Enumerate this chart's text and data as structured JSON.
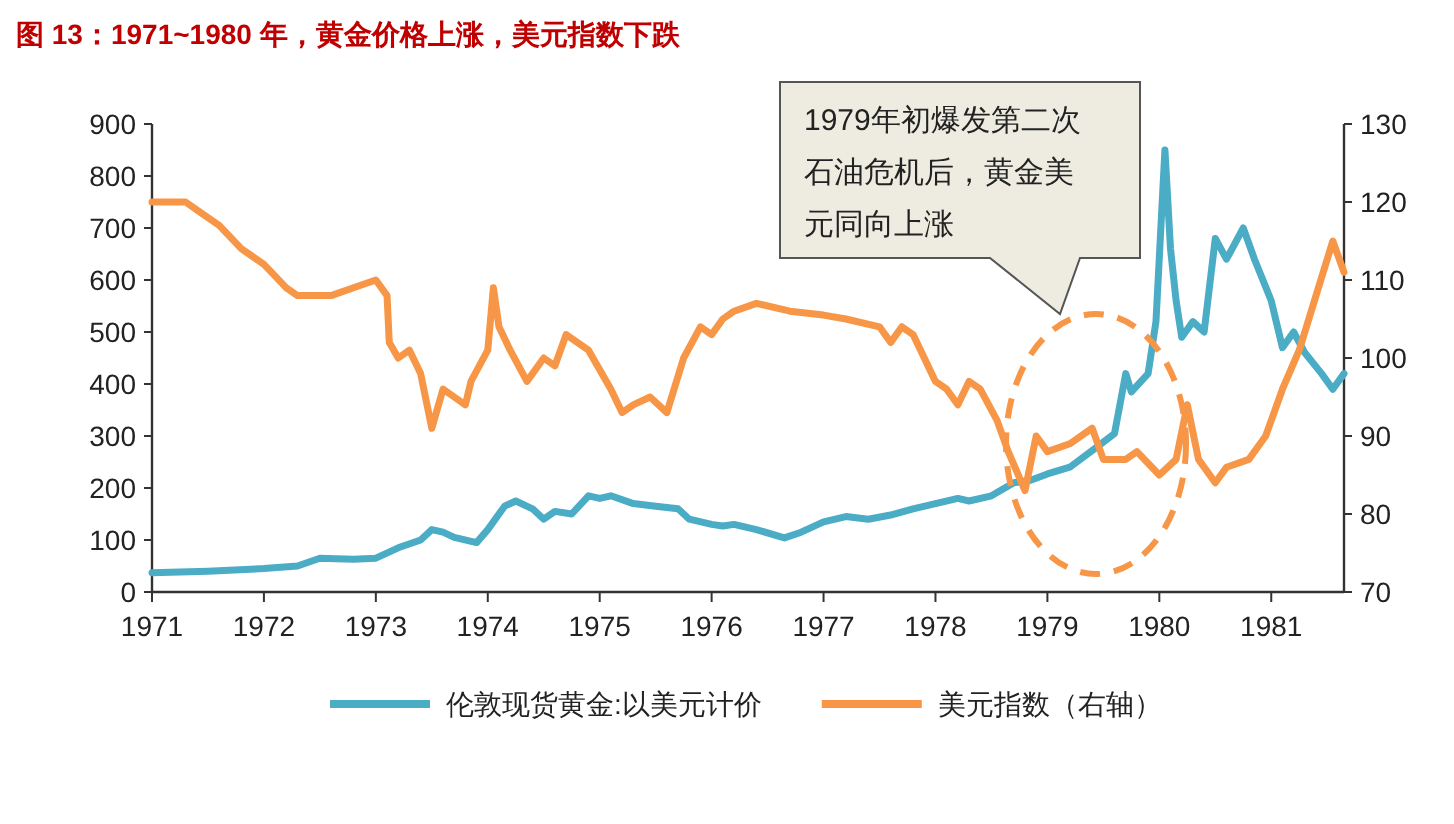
{
  "chart_data": {
    "type": "line",
    "title": "图 13：1971~1980 年，黄金价格上涨，美元指数下跌",
    "xlim": [
      1971,
      1981.65
    ],
    "xticks": [
      1971,
      1972,
      1973,
      1974,
      1975,
      1976,
      1977,
      1978,
      1979,
      1980,
      1981
    ],
    "ylim": [
      0,
      900
    ],
    "yticks": [
      0,
      100,
      200,
      300,
      400,
      500,
      600,
      700,
      800,
      900
    ],
    "y2lim": [
      70,
      130
    ],
    "y2ticks": [
      70,
      80,
      90,
      100,
      110,
      120,
      130
    ],
    "legend": "bottom",
    "grid": false,
    "annotations": [
      "1979年初爆发第二次石油危机后，黄金美元同向上涨"
    ],
    "series": [
      {
        "name": "伦敦现货黄金:以美元计价",
        "color": "#4bacc6",
        "x": [
          1971.0,
          1971.5,
          1972.0,
          1972.3,
          1972.5,
          1972.8,
          1973.0,
          1973.2,
          1973.4,
          1973.5,
          1973.6,
          1973.7,
          1973.9,
          1974.0,
          1974.15,
          1974.25,
          1974.4,
          1974.5,
          1974.6,
          1974.75,
          1974.9,
          1975.0,
          1975.1,
          1975.3,
          1975.5,
          1975.7,
          1975.8,
          1976.0,
          1976.1,
          1976.2,
          1976.4,
          1976.65,
          1976.8,
          1977.0,
          1977.2,
          1977.4,
          1977.6,
          1977.8,
          1978.0,
          1978.2,
          1978.3,
          1978.5,
          1978.7,
          1978.85,
          1979.0,
          1979.2,
          1979.45,
          1979.6,
          1979.7,
          1979.75,
          1979.9,
          1979.97,
          1980.05,
          1980.1,
          1980.15,
          1980.2,
          1980.3,
          1980.4,
          1980.5,
          1980.6,
          1980.75,
          1980.85,
          1981.0,
          1981.1,
          1981.2,
          1981.3,
          1981.45,
          1981.55,
          1981.65
        ],
        "values": [
          37,
          40,
          45,
          50,
          65,
          63,
          65,
          85,
          100,
          120,
          115,
          105,
          95,
          120,
          165,
          175,
          160,
          140,
          155,
          150,
          185,
          180,
          185,
          170,
          165,
          160,
          140,
          130,
          127,
          130,
          120,
          104,
          115,
          135,
          145,
          140,
          148,
          160,
          170,
          180,
          175,
          185,
          210,
          215,
          227,
          240,
          280,
          305,
          420,
          385,
          420,
          520,
          850,
          660,
          560,
          490,
          520,
          500,
          680,
          640,
          700,
          640,
          560,
          470,
          500,
          460,
          420,
          390,
          420
        ]
      },
      {
        "name": "美元指数（右轴）",
        "color": "#f79646",
        "axis": "y2",
        "x": [
          1971.0,
          1971.3,
          1971.4,
          1971.6,
          1971.8,
          1972.0,
          1972.2,
          1972.3,
          1972.6,
          1972.8,
          1973.0,
          1973.1,
          1973.12,
          1973.2,
          1973.3,
          1973.4,
          1973.5,
          1973.6,
          1973.7,
          1973.8,
          1973.85,
          1974.0,
          1974.05,
          1974.1,
          1974.2,
          1974.35,
          1974.5,
          1974.6,
          1974.7,
          1974.9,
          1975.1,
          1975.2,
          1975.3,
          1975.45,
          1975.6,
          1975.75,
          1975.9,
          1976.0,
          1976.1,
          1976.2,
          1976.4,
          1976.7,
          1977.0,
          1977.2,
          1977.5,
          1977.6,
          1977.7,
          1977.8,
          1978.0,
          1978.1,
          1978.2,
          1978.3,
          1978.4,
          1978.55,
          1978.65,
          1978.8,
          1978.9,
          1979.0,
          1979.2,
          1979.4,
          1979.5,
          1979.7,
          1979.8,
          1980.0,
          1980.15,
          1980.25,
          1980.35,
          1980.5,
          1980.6,
          1980.8,
          1980.95,
          1981.1,
          1981.25,
          1981.4,
          1981.55,
          1981.65
        ],
        "values": [
          120,
          120,
          119,
          117,
          114,
          112,
          109,
          108,
          108,
          109,
          110,
          108,
          102,
          100,
          101,
          98,
          91,
          96,
          95,
          94,
          97,
          101,
          109,
          104,
          101,
          97,
          100,
          99,
          103,
          101,
          96,
          93,
          94,
          95,
          93,
          100,
          104,
          103,
          105,
          106,
          107,
          106,
          105.5,
          105,
          104,
          102,
          104,
          103,
          97,
          96,
          94,
          97,
          96,
          92,
          88,
          83,
          90,
          88,
          89,
          91,
          87,
          87,
          88,
          85,
          87,
          94,
          87,
          84,
          86,
          87,
          90,
          96,
          101,
          108,
          115,
          111
        ]
      }
    ]
  }
}
